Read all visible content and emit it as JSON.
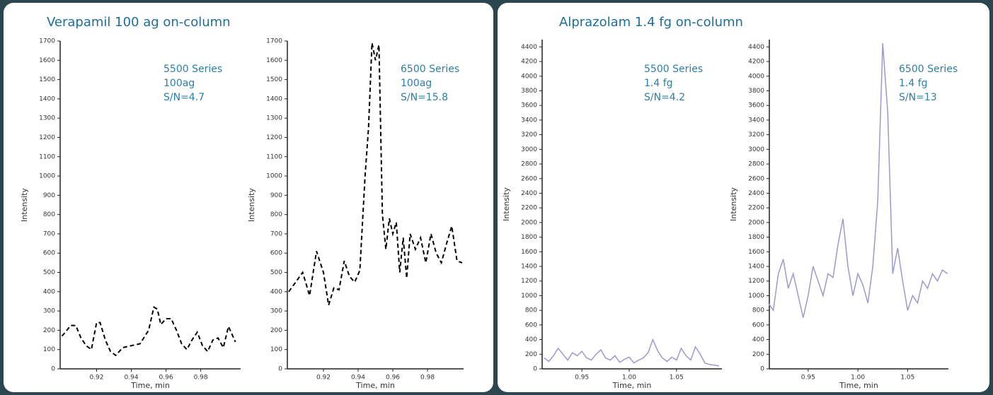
{
  "panel_titles": [
    "Verapamil 100 ag on-column",
    "Alprazolam 1.4 fg on-column"
  ],
  "chart_data": [
    {
      "type": "line",
      "xlabel": "Time, min",
      "ylabel": "Intensity",
      "annotation": [
        "5500 Series",
        "100ag",
        "S/N=4.7"
      ],
      "xlim": [
        0.899,
        1.003
      ],
      "ylim": [
        0,
        1700
      ],
      "xticks": [
        0.92,
        0.94,
        0.96,
        0.98
      ],
      "yticks": [
        0,
        100,
        200,
        300,
        400,
        500,
        600,
        700,
        800,
        900,
        1000,
        1100,
        1200,
        1300,
        1400,
        1500,
        1600,
        1700
      ],
      "x": [
        0.9,
        0.902,
        0.905,
        0.908,
        0.911,
        0.914,
        0.917,
        0.92,
        0.922,
        0.925,
        0.928,
        0.931,
        0.935,
        0.94,
        0.945,
        0.95,
        0.953,
        0.955,
        0.957,
        0.96,
        0.963,
        0.966,
        0.969,
        0.972,
        0.975,
        0.978,
        0.981,
        0.984,
        0.987,
        0.99,
        0.993,
        0.996,
        1.0
      ],
      "series": [
        {
          "color": "#000000",
          "dashed": true,
          "values": [
            170,
            190,
            225,
            225,
            160,
            120,
            100,
            240,
            240,
            150,
            90,
            70,
            110,
            120,
            130,
            200,
            320,
            310,
            230,
            260,
            260,
            200,
            130,
            100,
            150,
            190,
            120,
            90,
            150,
            160,
            110,
            220,
            140
          ]
        }
      ]
    },
    {
      "type": "line",
      "xlabel": "Time, min",
      "ylabel": "Intensity",
      "annotation": [
        "6500 Series",
        "100ag",
        "S/N=15.8"
      ],
      "xlim": [
        0.8992,
        1.0008
      ],
      "ylim": [
        0,
        1700
      ],
      "xticks": [
        0.92,
        0.94,
        0.96,
        0.98
      ],
      "yticks": [
        0,
        100,
        200,
        300,
        400,
        500,
        600,
        700,
        800,
        900,
        1000,
        1100,
        1200,
        1300,
        1400,
        1500,
        1600,
        1700
      ],
      "x": [
        0.9,
        0.904,
        0.908,
        0.912,
        0.916,
        0.92,
        0.923,
        0.926,
        0.929,
        0.932,
        0.935,
        0.938,
        0.941,
        0.944,
        0.946,
        0.948,
        0.95,
        0.952,
        0.954,
        0.956,
        0.958,
        0.96,
        0.962,
        0.964,
        0.966,
        0.968,
        0.97,
        0.973,
        0.976,
        0.979,
        0.982,
        0.985,
        0.988,
        0.991,
        0.994,
        0.997,
        1.0
      ],
      "series": [
        {
          "color": "#000000",
          "dashed": true,
          "values": [
            400,
            450,
            500,
            380,
            610,
            500,
            330,
            420,
            410,
            560,
            480,
            450,
            510,
            1000,
            1250,
            1690,
            1600,
            1680,
            800,
            620,
            780,
            700,
            760,
            500,
            680,
            470,
            700,
            620,
            680,
            550,
            700,
            600,
            550,
            650,
            740,
            560,
            550
          ]
        }
      ]
    },
    {
      "type": "line",
      "xlabel": "Time, min",
      "ylabel": "Intensity",
      "annotation": [
        "5500 Series",
        "1.4 fg",
        "S/N=4.2"
      ],
      "xlim": [
        0.908,
        1.098
      ],
      "ylim": [
        0,
        4500
      ],
      "xticks": [
        0.95,
        {
          "value": 1,
          "label": "1.00"
        },
        1.05
      ],
      "yticks": [
        0,
        200,
        400,
        600,
        800,
        1000,
        1200,
        1400,
        1600,
        1800,
        2000,
        2200,
        2400,
        2600,
        2800,
        3000,
        3200,
        3400,
        3600,
        3800,
        4000,
        4200,
        4400
      ],
      "x": [
        0.91,
        0.915,
        0.92,
        0.925,
        0.93,
        0.935,
        0.94,
        0.945,
        0.95,
        0.955,
        0.96,
        0.965,
        0.97,
        0.975,
        0.98,
        0.985,
        0.99,
        0.995,
        1.0,
        1.005,
        1.01,
        1.015,
        1.02,
        1.025,
        1.03,
        1.035,
        1.04,
        1.045,
        1.05,
        1.055,
        1.06,
        1.065,
        1.07,
        1.075,
        1.08,
        1.085,
        1.09,
        1.095
      ],
      "series": [
        {
          "color": "#9a9ad0",
          "dashed": false,
          "values": [
            150,
            100,
            180,
            280,
            200,
            120,
            220,
            180,
            240,
            150,
            120,
            200,
            260,
            150,
            120,
            180,
            90,
            130,
            160,
            80,
            120,
            150,
            220,
            400,
            250,
            150,
            100,
            160,
            120,
            280,
            180,
            120,
            300,
            200,
            80,
            60,
            50,
            40
          ]
        }
      ]
    },
    {
      "type": "line",
      "xlabel": "Time, min",
      "ylabel": "Intensity",
      "annotation": [
        "6500 Series",
        "1.4 fg",
        "S/N=13"
      ],
      "xlim": [
        0.911,
        1.091
      ],
      "ylim": [
        0,
        4500
      ],
      "xticks": [
        0.95,
        {
          "value": 1,
          "label": "1.00"
        },
        1.05
      ],
      "yticks": [
        0,
        200,
        400,
        600,
        800,
        1000,
        1200,
        1400,
        1600,
        1800,
        2000,
        2200,
        2400,
        2600,
        2800,
        3000,
        3200,
        3400,
        3600,
        3800,
        4000,
        4200,
        4400
      ],
      "x": [
        0.91,
        0.915,
        0.92,
        0.925,
        0.93,
        0.935,
        0.94,
        0.945,
        0.95,
        0.955,
        0.96,
        0.965,
        0.97,
        0.975,
        0.98,
        0.985,
        0.99,
        0.995,
        1.0,
        1.005,
        1.01,
        1.015,
        1.02,
        1.025,
        1.03,
        1.035,
        1.04,
        1.045,
        1.05,
        1.055,
        1.06,
        1.065,
        1.07,
        1.075,
        1.08,
        1.085,
        1.09
      ],
      "series": [
        {
          "color": "#9a9ad0",
          "dashed": false,
          "values": [
            900,
            800,
            1300,
            1500,
            1100,
            1300,
            1000,
            700,
            1000,
            1400,
            1200,
            1000,
            1300,
            1250,
            1700,
            2050,
            1400,
            1000,
            1300,
            1150,
            900,
            1400,
            2300,
            4450,
            3500,
            1300,
            1650,
            1200,
            800,
            1000,
            900,
            1200,
            1100,
            1300,
            1200,
            1350,
            1300
          ]
        }
      ]
    }
  ]
}
